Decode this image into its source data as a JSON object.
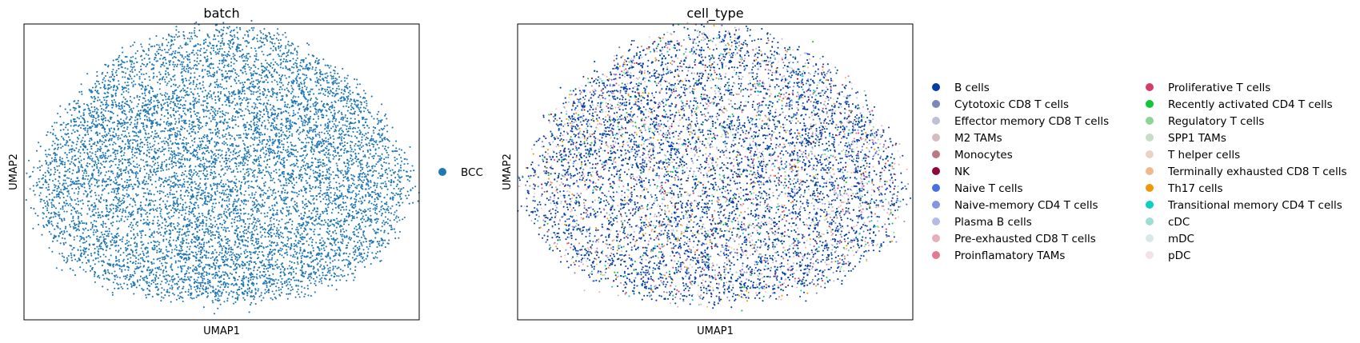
{
  "chart_data": [
    {
      "type": "scatter",
      "title": "batch",
      "xlabel": "UMAP1",
      "ylabel": "UMAP2",
      "ticks": false,
      "grid": false,
      "distribution": "single dense elliptical cloud of cells",
      "legend": {
        "placement": "right",
        "entries": [
          {
            "label": "BCC",
            "color": "#1f77b4"
          }
        ]
      },
      "series": [
        {
          "name": "BCC",
          "color": "#1f77b4",
          "approx_points": 9000
        }
      ]
    },
    {
      "type": "scatter",
      "title": "cell_type",
      "xlabel": "UMAP1",
      "ylabel": "UMAP2",
      "ticks": false,
      "grid": false,
      "distribution": "same elliptical cloud colored by cell type; B cells dominate",
      "legend": {
        "placement": "right",
        "columns": 2,
        "entries": [
          {
            "label": "B cells",
            "color": "#023fa5"
          },
          {
            "label": "Cytotoxic CD8 T cells",
            "color": "#7d87b9"
          },
          {
            "label": "Effector memory CD8 T cells",
            "color": "#bec1d4"
          },
          {
            "label": "M2 TAMs",
            "color": "#d6bcc0"
          },
          {
            "label": "Monocytes",
            "color": "#bb7784"
          },
          {
            "label": "NK",
            "color": "#8e063b"
          },
          {
            "label": "Naive T cells",
            "color": "#4a6fe3"
          },
          {
            "label": "Naive-memory CD4 T cells",
            "color": "#8595e1"
          },
          {
            "label": "Plasma B cells",
            "color": "#b5bbe3"
          },
          {
            "label": "Pre-exhausted CD8 T cells",
            "color": "#e6afb9"
          },
          {
            "label": "Proinflamatory TAMs",
            "color": "#e07b91"
          },
          {
            "label": "Proliferative T cells",
            "color": "#d33f6a"
          },
          {
            "label": "Recently activated CD4 T cells",
            "color": "#11c638"
          },
          {
            "label": "Regulatory T cells",
            "color": "#8dd593"
          },
          {
            "label": "SPP1 TAMs",
            "color": "#c6dec7"
          },
          {
            "label": "T helper cells",
            "color": "#ead3c6"
          },
          {
            "label": "Terminally exhausted CD8 T cells",
            "color": "#f0b98d"
          },
          {
            "label": "Th17 cells",
            "color": "#ef9708"
          },
          {
            "label": "Transitional memory CD4 T cells",
            "color": "#0fcfc0"
          },
          {
            "label": "cDC",
            "color": "#9cded6"
          },
          {
            "label": "mDC",
            "color": "#d5eae7"
          },
          {
            "label": "pDC",
            "color": "#f3e1eb"
          }
        ]
      },
      "series": [
        {
          "name": "B cells",
          "color": "#023fa5",
          "share": 0.55
        },
        {
          "name": "Cytotoxic CD8 T cells",
          "color": "#7d87b9",
          "share": 0.03
        },
        {
          "name": "Effector memory CD8 T cells",
          "color": "#bec1d4",
          "share": 0.03
        },
        {
          "name": "M2 TAMs",
          "color": "#d6bcc0",
          "share": 0.02
        },
        {
          "name": "Monocytes",
          "color": "#bb7784",
          "share": 0.02
        },
        {
          "name": "NK",
          "color": "#8e063b",
          "share": 0.01
        },
        {
          "name": "Naive T cells",
          "color": "#4a6fe3",
          "share": 0.05
        },
        {
          "name": "Naive-memory CD4 T cells",
          "color": "#8595e1",
          "share": 0.03
        },
        {
          "name": "Plasma B cells",
          "color": "#b5bbe3",
          "share": 0.02
        },
        {
          "name": "Pre-exhausted CD8 T cells",
          "color": "#e6afb9",
          "share": 0.02
        },
        {
          "name": "Proinflamatory TAMs",
          "color": "#e07b91",
          "share": 0.02
        },
        {
          "name": "Proliferative T cells",
          "color": "#d33f6a",
          "share": 0.02
        },
        {
          "name": "Recently activated CD4 T cells",
          "color": "#11c638",
          "share": 0.02
        },
        {
          "name": "Regulatory T cells",
          "color": "#8dd593",
          "share": 0.02
        },
        {
          "name": "SPP1 TAMs",
          "color": "#c6dec7",
          "share": 0.01
        },
        {
          "name": "T helper cells",
          "color": "#ead3c6",
          "share": 0.02
        },
        {
          "name": "Terminally exhausted CD8 T cells",
          "color": "#f0b98d",
          "share": 0.03
        },
        {
          "name": "Th17 cells",
          "color": "#ef9708",
          "share": 0.03
        },
        {
          "name": "Transitional memory CD4 T cells",
          "color": "#0fcfc0",
          "share": 0.02
        },
        {
          "name": "cDC",
          "color": "#9cded6",
          "share": 0.01
        },
        {
          "name": "mDC",
          "color": "#d5eae7",
          "share": 0.01
        },
        {
          "name": "pDC",
          "color": "#f3e1eb",
          "share": 0.01
        }
      ]
    }
  ]
}
